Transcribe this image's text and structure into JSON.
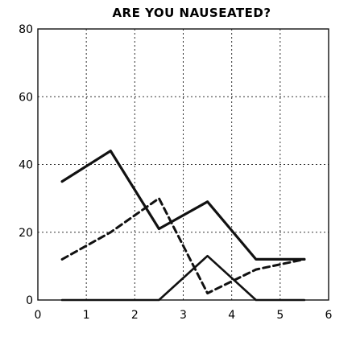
{
  "chart_data": {
    "type": "line",
    "title": "ARE YOU NAUSEATED?",
    "xlabel": "",
    "ylabel": "",
    "xlim": [
      0,
      6
    ],
    "ylim": [
      0,
      80
    ],
    "x_ticks": [
      0,
      1,
      2,
      3,
      4,
      5,
      6
    ],
    "y_ticks": [
      0,
      20,
      40,
      60,
      80
    ],
    "grid": true,
    "legend": "none",
    "series": [
      {
        "style": "solid-thick",
        "color": "#111111",
        "x": [
          0.5,
          1.5,
          2.5,
          3.5,
          4.5,
          5.5
        ],
        "y": [
          35,
          44,
          21,
          29,
          12,
          12
        ]
      },
      {
        "style": "dashed",
        "color": "#111111",
        "x": [
          0.5,
          1.5,
          2.5,
          3.5,
          4.5,
          5.5
        ],
        "y": [
          12,
          20,
          30,
          2,
          9,
          12
        ]
      },
      {
        "style": "solid",
        "color": "#111111",
        "x": [
          0.5,
          1.5,
          2.5,
          3.5,
          4.5,
          5.5
        ],
        "y": [
          0,
          0,
          0,
          13,
          0,
          0
        ]
      }
    ]
  }
}
